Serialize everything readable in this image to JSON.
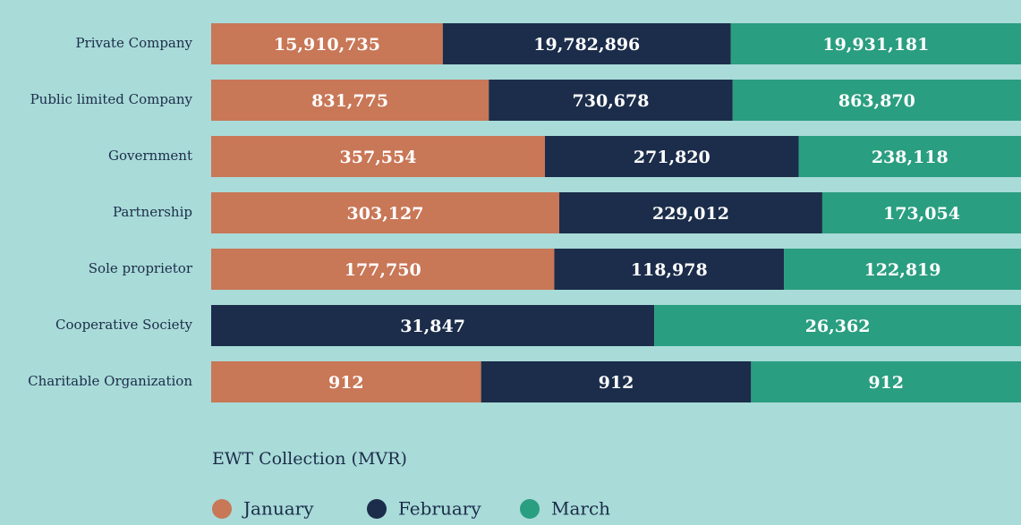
{
  "chart_data": {
    "type": "stacked_bar_100_horizontal",
    "categories": [
      "Private Company",
      "Public limited Company",
      "Government",
      "Partnership",
      "Sole proprietor",
      "Cooperative Society",
      "Charitable Organization"
    ],
    "series": [
      {
        "name": "January",
        "color": "#c87757",
        "values": [
          15910735,
          831775,
          357554,
          303127,
          177750,
          null,
          912
        ],
        "value_labels": [
          "15,910,735",
          "831,775",
          "357,554",
          "303,127",
          "177,750",
          null,
          "912"
        ]
      },
      {
        "name": "February",
        "color": "#1b2d4a",
        "values": [
          19782896,
          730678,
          271820,
          229012,
          118978,
          31847,
          912
        ],
        "value_labels": [
          "19,782,896",
          "730,678",
          "271,820",
          "229,012",
          "118,978",
          "31,847",
          "912"
        ]
      },
      {
        "name": "March",
        "color": "#2a9e80",
        "values": [
          19931181,
          863870,
          238118,
          173054,
          122819,
          26362,
          912
        ],
        "value_labels": [
          "19,931,181",
          "863,870",
          "238,118",
          "173,054",
          "122,819",
          "26,362",
          "912"
        ]
      }
    ],
    "xlabel": "EWT Collection (MVR)",
    "legend": "bottom-left"
  }
}
